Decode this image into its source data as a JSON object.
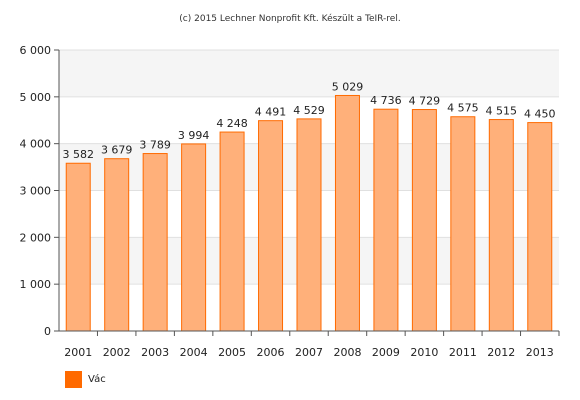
{
  "credit": "(c) 2015 Lechner Nonprofit Kft. Készült a TeIR-rel.",
  "legend": {
    "label": "Vác",
    "color": "#ff6a00"
  },
  "chart_data": {
    "type": "bar",
    "title": "",
    "xlabel": "",
    "ylabel": "",
    "categories": [
      "2001",
      "2002",
      "2003",
      "2004",
      "2005",
      "2006",
      "2007",
      "2008",
      "2009",
      "2010",
      "2011",
      "2012",
      "2013"
    ],
    "values": [
      3582,
      3679,
      3789,
      3994,
      4248,
      4491,
      4529,
      5029,
      4736,
      4729,
      4575,
      4515,
      4450
    ],
    "data_labels": [
      "3 582",
      "3 679",
      "3 789",
      "3 994",
      "4 248",
      "4 491",
      "4 529",
      "5 029",
      "4 736",
      "4 729",
      "4 575",
      "4 515",
      "4 450"
    ],
    "ylim": [
      0,
      6000
    ],
    "yticks": [
      0,
      1000,
      2000,
      3000,
      4000,
      5000,
      6000
    ],
    "ytick_labels": [
      "0",
      "1 000",
      "2 000",
      "3 000",
      "4 000",
      "5 000",
      "6 000"
    ],
    "grid": true,
    "legend_position": "bottom-left",
    "colors": {
      "bar_fill": "#ffb07a",
      "bar_stroke": "#ff6a00",
      "band": "#f5f5f5",
      "grid": "#e0e0e0"
    }
  }
}
